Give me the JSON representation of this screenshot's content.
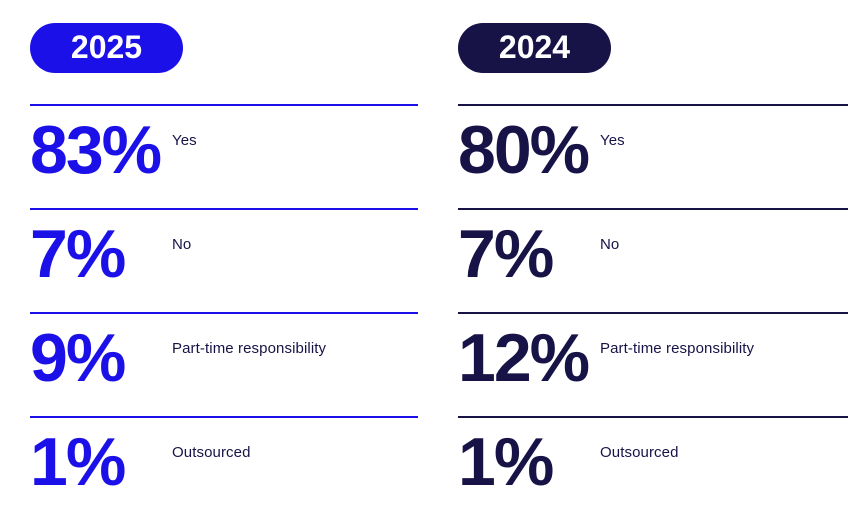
{
  "columns": [
    {
      "year": "2025",
      "accent": "#1c10e8",
      "label_color": "#171347",
      "rows": [
        {
          "value": "83%",
          "label": "Yes"
        },
        {
          "value": "7%",
          "label": "No"
        },
        {
          "value": "9%",
          "label": "Part-time responsibility"
        },
        {
          "value": "1%",
          "label": "Outsourced"
        }
      ]
    },
    {
      "year": "2024",
      "accent": "#171347",
      "label_color": "#171347",
      "rows": [
        {
          "value": "80%",
          "label": "Yes"
        },
        {
          "value": "7%",
          "label": "No"
        },
        {
          "value": "12%",
          "label": "Part-time responsibility"
        },
        {
          "value": "1%",
          "label": "Outsourced"
        }
      ]
    }
  ],
  "chart_data": {
    "type": "table",
    "title": "",
    "categories": [
      "Yes",
      "No",
      "Part-time responsibility",
      "Outsourced"
    ],
    "series": [
      {
        "name": "2025",
        "values": [
          83,
          7,
          9,
          1
        ]
      },
      {
        "name": "2024",
        "values": [
          80,
          7,
          12,
          1
        ]
      }
    ],
    "unit": "%",
    "legend_position": "top",
    "colors": {
      "2025": "#1c10e8",
      "2024": "#171347"
    }
  }
}
